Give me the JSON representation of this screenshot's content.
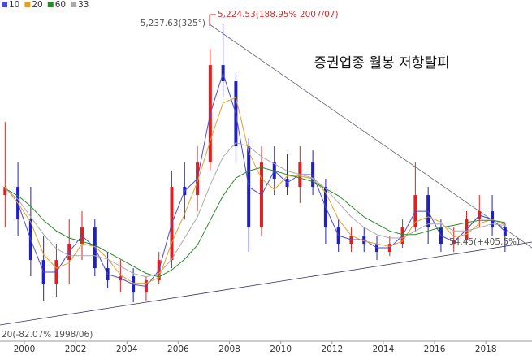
{
  "chart_data": {
    "type": "candlestick",
    "title": "증권업종 월봉 저항탈피",
    "annotations": {
      "peak_left": "5,237.63(325°)",
      "peak_right": "5,224.53(188.95% 2007/07)",
      "low": "20(-82.07% 1998/06)",
      "current": "54.45(+405.5%)"
    },
    "x": [
      1999.25,
      1999.75,
      2000.25,
      2000.75,
      2001.25,
      2001.75,
      2002.25,
      2002.75,
      2003.25,
      2003.75,
      2004.25,
      2004.75,
      2005.25,
      2005.75,
      2006.25,
      2006.75,
      2007.25,
      2007.75,
      2008.25,
      2008.75,
      2009.25,
      2009.75,
      2010.25,
      2010.75,
      2011.25,
      2011.75,
      2012.25,
      2012.75,
      2013.25,
      2013.75,
      2014.25,
      2014.75,
      2015.25,
      2015.75,
      2016.25,
      2016.75,
      2017.25,
      2017.75,
      2018.25,
      2018.75
    ],
    "open": [
      2809,
      2924,
      2464,
      1889,
      1544,
      1889,
      2119,
      2349,
      1774,
      1602,
      1659,
      1429,
      1602,
      1889,
      2924,
      2809,
      3269,
      4649,
      4419,
      3499,
      2349,
      3269,
      3039,
      2924,
      3269,
      2924,
      2349,
      2119,
      2234,
      2119,
      2004,
      2119,
      2349,
      2809,
      2349,
      2119,
      2177,
      2464,
      2579,
      2349
    ],
    "high": [
      3844,
      3269,
      2924,
      2234,
      2119,
      2464,
      2579,
      2464,
      2004,
      1889,
      1774,
      1659,
      2004,
      3154,
      3269,
      3499,
      4879,
      5224,
      4534,
      3614,
      3499,
      3499,
      3384,
      3499,
      3441,
      3039,
      2464,
      2349,
      2349,
      2234,
      2234,
      2464,
      3269,
      2924,
      2464,
      2349,
      2579,
      2809,
      2809,
      2407
    ],
    "low": [
      2349,
      2234,
      1659,
      1314,
      1372,
      1544,
      1889,
      1659,
      1487,
      1429,
      1291,
      1314,
      1544,
      1774,
      2464,
      2579,
      3154,
      4189,
      3269,
      2004,
      2234,
      2809,
      2809,
      2694,
      2809,
      2119,
      2004,
      2004,
      2004,
      1889,
      1947,
      2062,
      2292,
      2119,
      2004,
      2004,
      2119,
      2349,
      2234,
      2004
    ],
    "close": [
      2924,
      2464,
      1889,
      1544,
      1889,
      2119,
      2349,
      1774,
      1602,
      1659,
      1429,
      1602,
      1889,
      2924,
      2809,
      3269,
      4649,
      4419,
      3499,
      2349,
      3269,
      3039,
      2924,
      3269,
      2924,
      2349,
      2119,
      2234,
      2119,
      2004,
      2119,
      2349,
      2809,
      2349,
      2119,
      2177,
      2464,
      2579,
      2349,
      2234
    ],
    "up_color": "#e02020",
    "down_color": "#2020c0",
    "series": [
      {
        "name": "10",
        "color": "#4b4bd0",
        "values": [
          2924,
          2694,
          2177,
          1717,
          1717,
          2004,
          2234,
          2062,
          1688,
          1631,
          1544,
          1516,
          1746,
          2407,
          2867,
          3039,
          3959,
          4534,
          3959,
          2924,
          2809,
          3154,
          2982,
          3097,
          3097,
          2637,
          2234,
          2177,
          2177,
          2062,
          2062,
          2234,
          2579,
          2579,
          2234,
          2148,
          2321,
          2522,
          2464,
          2292
        ]
      },
      {
        "name": "20",
        "color": "#e0a030",
        "values": [
          2924,
          2694,
          2426,
          1966,
          1774,
          1851,
          2119,
          2081,
          1908,
          1678,
          1563,
          1563,
          1640,
          2138,
          2541,
          3001,
          3576,
          4112,
          4189,
          3422,
          3039,
          2886,
          3077,
          3077,
          3039,
          2847,
          2464,
          2234,
          2157,
          2119,
          2081,
          2157,
          2426,
          2502,
          2426,
          2215,
          2253,
          2407,
          2464,
          2387
        ]
      },
      {
        "name": "60",
        "color": "#2a8a2a",
        "values": [
          2900,
          2800,
          2650,
          2450,
          2300,
          2200,
          2150,
          2100,
          2000,
          1900,
          1800,
          1700,
          1650,
          1750,
          1900,
          2100,
          2450,
          2800,
          3050,
          3150,
          3200,
          3150,
          3100,
          3050,
          3000,
          2900,
          2800,
          2650,
          2500,
          2400,
          2300,
          2250,
          2250,
          2300,
          2350,
          2380,
          2420,
          2450,
          2450,
          2420
        ]
      },
      {
        "name": "33",
        "color": "#aaaaaa",
        "values": [
          2900,
          2750,
          2500,
          2250,
          2050,
          1950,
          1950,
          1950,
          1900,
          1800,
          1700,
          1650,
          1700,
          1900,
          2200,
          2500,
          2950,
          3350,
          3550,
          3500,
          3350,
          3250,
          3150,
          3100,
          3050,
          2900,
          2700,
          2500,
          2350,
          2250,
          2200,
          2200,
          2300,
          2400,
          2400,
          2300,
          2300,
          2350,
          2400,
          2380
        ]
      }
    ],
    "xlim": [
      1999.05,
      2019.8
    ],
    "xticks": [
      2000,
      2002,
      2004,
      2006,
      2008,
      2010,
      2012,
      2014,
      2016,
      2018
    ],
    "ylim": [
      740,
      5570
    ]
  }
}
